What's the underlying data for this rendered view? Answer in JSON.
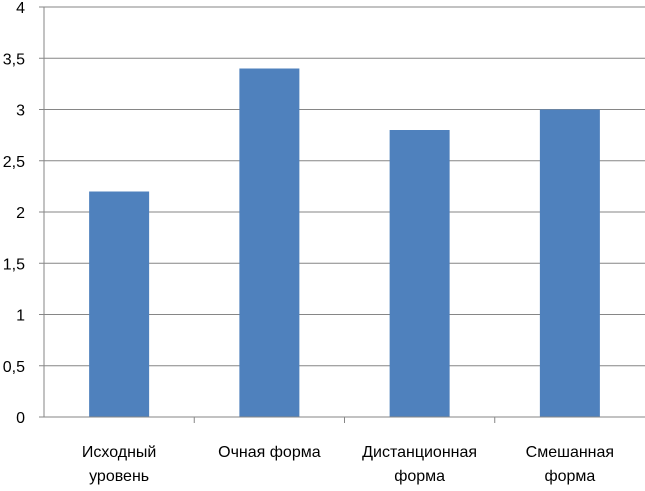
{
  "chart_data": {
    "type": "bar",
    "title": "",
    "xlabel": "",
    "ylabel": "",
    "categories": [
      [
        "Исходный",
        "уровень"
      ],
      [
        "Очная форма"
      ],
      [
        "Дистанционная",
        "форма"
      ],
      [
        "Смешанная",
        "форма"
      ]
    ],
    "series": [
      {
        "values": [
          2.2,
          3.4,
          2.8,
          3.0
        ]
      }
    ],
    "ylim": [
      0,
      4
    ],
    "yticks": [
      "0",
      "0,5",
      "1",
      "1,5",
      "2",
      "2,5",
      "3",
      "3,5",
      "4"
    ],
    "grid": true,
    "legend": "none",
    "colors": {
      "bar": "#4F81BD",
      "grid": "#868686",
      "axis": "#868686"
    }
  }
}
